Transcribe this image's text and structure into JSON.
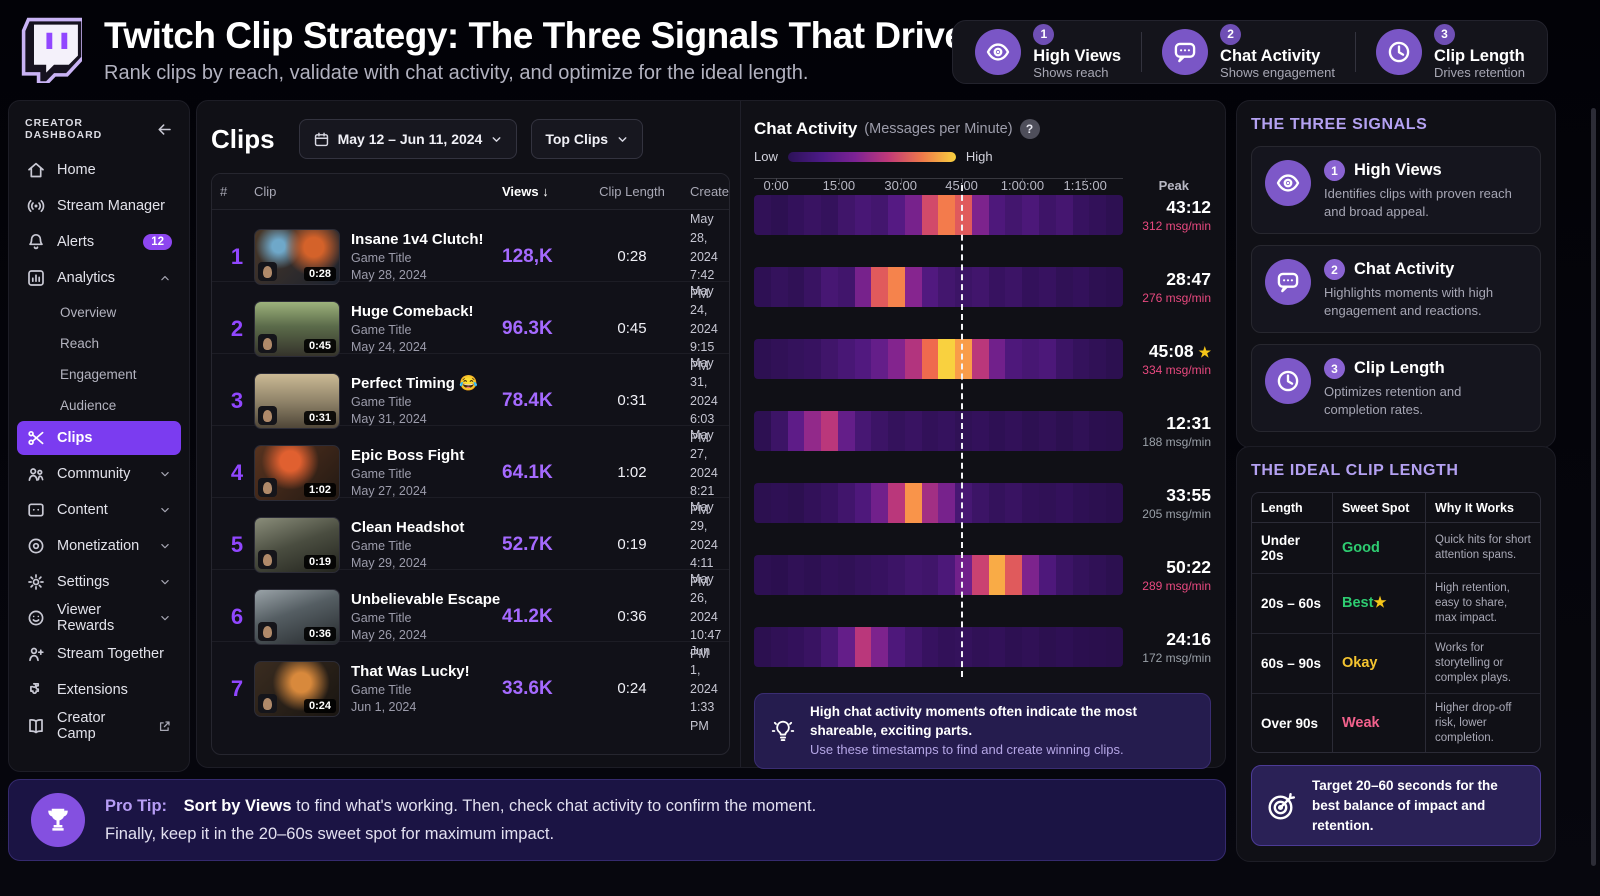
{
  "header": {
    "title": "Twitch Clip Strategy: The Three Signals That Drive Views",
    "subtitle": "Rank clips by reach, validate with chat activity, and optimize for the ideal length.",
    "signals": [
      {
        "num": "1",
        "label": "High Views",
        "sub": "Shows reach",
        "icon": "eye-icon"
      },
      {
        "num": "2",
        "label": "Chat Activity",
        "sub": "Shows engagement",
        "icon": "chat-icon"
      },
      {
        "num": "3",
        "label": "Clip Length",
        "sub": "Drives retention",
        "icon": "clock-icon"
      }
    ]
  },
  "sidebar": {
    "title": "CREATOR DASHBOARD",
    "items": [
      {
        "icon": "home-icon",
        "label": "Home"
      },
      {
        "icon": "broadcast-icon",
        "label": "Stream Manager"
      },
      {
        "icon": "bell-icon",
        "label": "Alerts",
        "badge": "12"
      },
      {
        "icon": "chart-icon",
        "label": "Analytics",
        "chevron": "up",
        "children": [
          "Overview",
          "Reach",
          "Engagement",
          "Audience"
        ]
      },
      {
        "icon": "scissors-icon",
        "label": "Clips",
        "selected": true
      },
      {
        "icon": "people-icon",
        "label": "Community",
        "chevron": "down"
      },
      {
        "icon": "content-icon",
        "label": "Content",
        "chevron": "down"
      },
      {
        "icon": "coin-icon",
        "label": "Monetization",
        "chevron": "down"
      },
      {
        "icon": "gear-icon",
        "label": "Settings",
        "chevron": "down"
      },
      {
        "icon": "smiley-icon",
        "label": "Viewer Rewards",
        "chevron": "down"
      },
      {
        "icon": "person-plus-icon",
        "label": "Stream Together"
      },
      {
        "icon": "puzzle-icon",
        "label": "Extensions"
      },
      {
        "icon": "book-icon",
        "label": "Creator Camp",
        "external": true
      }
    ]
  },
  "clips": {
    "title": "Clips",
    "date_range": "May 12 – Jun 11, 2024",
    "filter": "Top Clips",
    "sort_arrow": "↓",
    "columns": [
      "#",
      "Clip",
      "Views",
      "Clip Length",
      "Created"
    ],
    "rows": [
      {
        "rank": "1",
        "title": "Insane 1v4 Clutch!",
        "game": "Game Title",
        "date": "May 28, 2024",
        "views": "128,K",
        "length": "0:28",
        "created_date": "May 28, 2024",
        "created_time": "7:42 PM",
        "duration": "0:28"
      },
      {
        "rank": "2",
        "title": "Huge Comeback!",
        "game": "Game Title",
        "date": "May 24, 2024",
        "views": "96.3K",
        "length": "0:45",
        "created_date": "May 24, 2024",
        "created_time": "9:15 PM",
        "duration": "0:45"
      },
      {
        "rank": "3",
        "title": "Perfect Timing 😂",
        "game": "Game Title",
        "date": "May 31, 2024",
        "views": "78.4K",
        "length": "0:31",
        "created_date": "May 31, 2024",
        "created_time": "6:03 PM",
        "duration": "0:31"
      },
      {
        "rank": "4",
        "title": "Epic Boss Fight",
        "game": "Game Title",
        "date": "May 27, 2024",
        "views": "64.1K",
        "length": "1:02",
        "created_date": "May 27, 2024",
        "created_time": "8:21 PM",
        "duration": "1:02"
      },
      {
        "rank": "5",
        "title": "Clean Headshot",
        "game": "Game Title",
        "date": "May 29, 2024",
        "views": "52.7K",
        "length": "0:19",
        "created_date": "May 29, 2024",
        "created_time": "4:11 PM",
        "duration": "0:19"
      },
      {
        "rank": "6",
        "title": "Unbelievable Escape",
        "game": "Game Title",
        "date": "May 26, 2024",
        "views": "41.2K",
        "length": "0:36",
        "created_date": "May 26, 2024",
        "created_time": "10:47 PM",
        "duration": "0:36"
      },
      {
        "rank": "7",
        "title": "That Was Lucky!",
        "game": "Game Title",
        "date": "Jun 1, 2024",
        "views": "33.6K",
        "length": "0:24",
        "created_date": "Jun 1, 2024",
        "created_time": "1:33 PM",
        "duration": "0:24"
      }
    ]
  },
  "chat": {
    "title": "Chat Activity",
    "subtitle": "(Messages per Minute)",
    "help": "?",
    "legend_low": "Low",
    "legend_high": "High",
    "peak_label": "Peak",
    "note_line1": "High chat activity moments often indicate the most shareable, exciting parts.",
    "note_line2": "Use these timestamps to find and create winning clips."
  },
  "chart_data": {
    "type": "heatmap",
    "title": "Chat Activity (Messages per Minute)",
    "x_axis_labels": [
      "0:00",
      "15:00",
      "30:00",
      "45:00",
      "1:00:00",
      "1:15:00"
    ],
    "legend": {
      "low": "Low",
      "high": "High"
    },
    "dashed_marker_at": "45:00",
    "rows": [
      {
        "peak_time": "43:12",
        "peak_msg": "312 msg/min",
        "msg_value": 312,
        "high": true,
        "starred": false,
        "cells": [
          0.16,
          0.13,
          0.18,
          0.22,
          0.19,
          0.26,
          0.31,
          0.28,
          0.38,
          0.5,
          0.74,
          0.86,
          0.78,
          0.52,
          0.34,
          0.28,
          0.33,
          0.25,
          0.29,
          0.21,
          0.17,
          0.13
        ]
      },
      {
        "peak_time": "28:47",
        "peak_msg": "276 msg/min",
        "msg_value": 276,
        "high": true,
        "starred": false,
        "cells": [
          0.14,
          0.19,
          0.15,
          0.22,
          0.3,
          0.27,
          0.5,
          0.78,
          0.88,
          0.55,
          0.36,
          0.28,
          0.24,
          0.27,
          0.21,
          0.24,
          0.18,
          0.21,
          0.15,
          0.18,
          0.13,
          0.11
        ]
      },
      {
        "peak_time": "45:08",
        "peak_msg": "334 msg/min",
        "msg_value": 334,
        "high": true,
        "starred": true,
        "cells": [
          0.13,
          0.16,
          0.19,
          0.21,
          0.26,
          0.31,
          0.36,
          0.44,
          0.54,
          0.66,
          0.82,
          1.0,
          0.93,
          0.68,
          0.48,
          0.34,
          0.3,
          0.33,
          0.24,
          0.19,
          0.15,
          0.12
        ]
      },
      {
        "peak_time": "12:31",
        "peak_msg": "188 msg/min",
        "msg_value": 188,
        "high": false,
        "starred": false,
        "cells": [
          0.13,
          0.24,
          0.42,
          0.58,
          0.68,
          0.44,
          0.3,
          0.24,
          0.19,
          0.22,
          0.17,
          0.2,
          0.15,
          0.18,
          0.14,
          0.17,
          0.13,
          0.16,
          0.12,
          0.15,
          0.11,
          0.1
        ]
      },
      {
        "peak_time": "33:55",
        "peak_msg": "205 msg/min",
        "msg_value": 205,
        "high": false,
        "starred": false,
        "cells": [
          0.12,
          0.14,
          0.12,
          0.17,
          0.21,
          0.27,
          0.34,
          0.48,
          0.68,
          0.92,
          0.62,
          0.5,
          0.3,
          0.24,
          0.19,
          0.22,
          0.17,
          0.15,
          0.18,
          0.14,
          0.12,
          0.1
        ]
      },
      {
        "peak_time": "50:22",
        "peak_msg": "289 msg/min",
        "msg_value": 289,
        "high": true,
        "starred": false,
        "cells": [
          0.13,
          0.11,
          0.15,
          0.13,
          0.17,
          0.15,
          0.19,
          0.21,
          0.24,
          0.28,
          0.26,
          0.33,
          0.48,
          0.72,
          0.95,
          0.78,
          0.52,
          0.34,
          0.24,
          0.19,
          0.15,
          0.12
        ]
      },
      {
        "peak_time": "24:16",
        "peak_msg": "172 msg/min",
        "msg_value": 172,
        "high": false,
        "starred": false,
        "cells": [
          0.12,
          0.15,
          0.18,
          0.22,
          0.3,
          0.44,
          0.68,
          0.52,
          0.34,
          0.27,
          0.21,
          0.17,
          0.19,
          0.15,
          0.17,
          0.13,
          0.15,
          0.12,
          0.14,
          0.11,
          0.1,
          0.09
        ]
      }
    ]
  },
  "signals_panel": {
    "heading": "THE THREE SIGNALS",
    "cards": [
      {
        "num": "1",
        "icon": "eye-icon",
        "title": "High Views",
        "desc": "Identifies clips with proven reach and broad appeal."
      },
      {
        "num": "2",
        "icon": "chat-icon",
        "title": "Chat Activity",
        "desc": "Highlights moments with high engagement and reactions."
      },
      {
        "num": "3",
        "icon": "clock-icon",
        "title": "Clip Length",
        "desc": "Optimizes retention and completion rates."
      }
    ]
  },
  "length_panel": {
    "heading": "THE IDEAL CLIP LENGTH",
    "columns": [
      "Length",
      "Sweet Spot",
      "Why It Works"
    ],
    "rows": [
      {
        "length": "Under 20s",
        "rating": "Good",
        "rating_color": "good",
        "starred": false,
        "why": "Quick hits for short attention spans."
      },
      {
        "length": "20s – 60s",
        "rating": "Best",
        "rating_color": "good",
        "starred": true,
        "why": "High retention, easy to share, max impact."
      },
      {
        "length": "60s – 90s",
        "rating": "Okay",
        "rating_color": "okay",
        "starred": false,
        "why": "Works for storytelling or complex plays."
      },
      {
        "length": "Over 90s",
        "rating": "Weak",
        "rating_color": "weak",
        "starred": false,
        "why": "Higher drop-off risk, lower completion."
      }
    ],
    "tip": "Target 20–60 seconds for the best balance of impact and retention."
  },
  "pro_tip": {
    "label": "Pro Tip:",
    "bold": "Sort by Views",
    "line1_rest": " to find what's working. Then, check chat activity to confirm the moment.",
    "line2": "Finally, keep it in the 20–60s sweet spot for maximum impact."
  },
  "colors": {
    "brand_purple": "#9146FF",
    "views_purple": "#a56aff",
    "selected_nav": "#7b3cf0",
    "msg_high_pink": "#e8497f",
    "msg_low_gray": "#9aa0a8",
    "good": "#2ecc71",
    "okay": "#f4c430",
    "weak": "#f2618c",
    "star_gold": "#f5c518"
  }
}
